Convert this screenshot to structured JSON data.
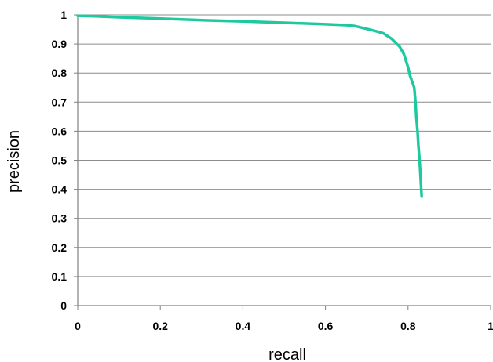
{
  "chart_data": {
    "type": "line",
    "title": "",
    "xlabel": "recall",
    "ylabel": "precision",
    "xlim": [
      0,
      1
    ],
    "ylim": [
      0,
      1
    ],
    "x_ticks": [
      0,
      0.2,
      0.4,
      0.6,
      0.8,
      1
    ],
    "y_ticks": [
      0,
      0.1,
      0.2,
      0.3,
      0.4,
      0.5,
      0.6,
      0.7,
      0.8,
      0.9,
      1
    ],
    "x_tick_labels": [
      "0",
      "0.2",
      "0.4",
      "0.6",
      "0.8",
      "1"
    ],
    "y_tick_labels": [
      "0",
      "0.1",
      "0.2",
      "0.3",
      "0.4",
      "0.5",
      "0.6",
      "0.7",
      "0.8",
      "0.9",
      "1"
    ],
    "grid": "horizontal",
    "legend": "none",
    "series": [
      {
        "color": "#1fc99f",
        "points": [
          [
            0.0,
            0.997
          ],
          [
            0.05,
            0.995
          ],
          [
            0.1,
            0.992
          ],
          [
            0.2,
            0.987
          ],
          [
            0.3,
            0.982
          ],
          [
            0.4,
            0.978
          ],
          [
            0.5,
            0.973
          ],
          [
            0.6,
            0.968
          ],
          [
            0.65,
            0.965
          ],
          [
            0.67,
            0.962
          ],
          [
            0.7,
            0.952
          ],
          [
            0.72,
            0.945
          ],
          [
            0.74,
            0.937
          ],
          [
            0.76,
            0.918
          ],
          [
            0.78,
            0.89
          ],
          [
            0.79,
            0.865
          ],
          [
            0.8,
            0.82
          ],
          [
            0.805,
            0.79
          ],
          [
            0.81,
            0.77
          ],
          [
            0.815,
            0.75
          ],
          [
            0.818,
            0.7
          ],
          [
            0.82,
            0.65
          ],
          [
            0.823,
            0.6
          ],
          [
            0.825,
            0.55
          ],
          [
            0.828,
            0.5
          ],
          [
            0.83,
            0.45
          ],
          [
            0.832,
            0.4
          ],
          [
            0.833,
            0.375
          ]
        ]
      }
    ]
  }
}
